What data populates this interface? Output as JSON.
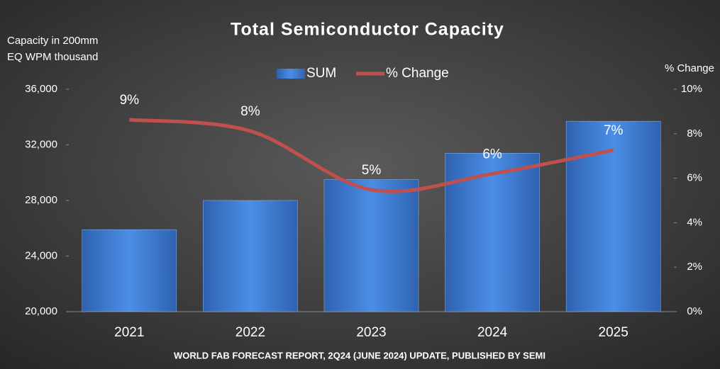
{
  "chart_data": {
    "type": "bar-line",
    "title": "Total Semiconductor Capacity",
    "y_label": [
      "Capacity in 200mm",
      "EQ WPM thousand"
    ],
    "y2_label": "% Change",
    "source": "WORLD FAB FORECAST REPORT, 2Q24 (JUNE 2024) UPDATE, PUBLISHED BY SEMI",
    "categories": [
      "2021",
      "2022",
      "2023",
      "2024",
      "2025"
    ],
    "series": [
      {
        "name": "SUM",
        "type": "bar",
        "color": "#3f7fd6",
        "values": [
          25900,
          28000,
          29500,
          31400,
          33700
        ]
      },
      {
        "name": "% Change",
        "type": "line",
        "axis": "y2",
        "color": "#c0504d",
        "values": [
          8.63,
          8.12,
          5.48,
          6.2,
          7.26
        ],
        "value_labels": [
          "9%",
          "8%",
          "5%",
          "6%",
          "7%"
        ]
      }
    ],
    "ylim": [
      20000,
      36000
    ],
    "yticks": [
      {
        "value": 20000,
        "label": "20,000"
      },
      {
        "value": 24000,
        "label": "24,000"
      },
      {
        "value": 28000,
        "label": "28,000"
      },
      {
        "value": 32000,
        "label": "32,000"
      },
      {
        "value": 36000,
        "label": "36,000"
      }
    ],
    "y2lim": [
      0,
      10
    ],
    "y2ticks": [
      {
        "value": 0,
        "label": "0%"
      },
      {
        "value": 2,
        "label": "2%"
      },
      {
        "value": 4,
        "label": "4%"
      },
      {
        "value": 6,
        "label": "6%"
      },
      {
        "value": 8,
        "label": "8%"
      },
      {
        "value": 10,
        "label": "10%"
      }
    ],
    "grid": false
  }
}
